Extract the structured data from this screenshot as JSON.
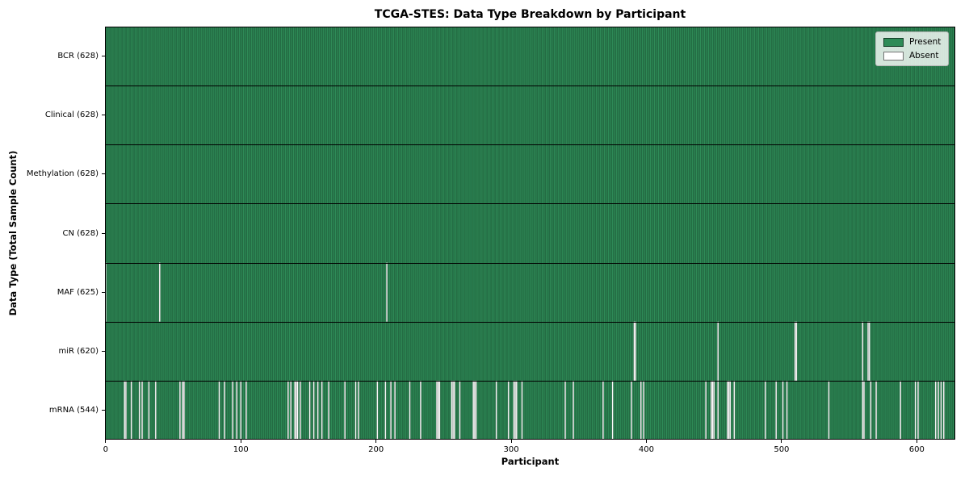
{
  "title": "TCGA-STES: Data Type Breakdown by Participant",
  "axes": {
    "xlabel": "Participant",
    "ylabel": "Data Type (Total Sample Count)"
  },
  "legend": {
    "items": [
      {
        "label": "Present",
        "color": "#2e8b57"
      },
      {
        "label": "Absent",
        "color": "#ffffff"
      }
    ]
  },
  "colors": {
    "present": "#2e8b57",
    "absent": "#ffffff",
    "bar_edge": "rgba(0,0,0,0.45)",
    "row_separator": "#000000",
    "axes_border": "#000000"
  },
  "chart_data": {
    "type": "heatmap",
    "title": "TCGA-STES: Data Type Breakdown by Participant",
    "xlabel": "Participant",
    "ylabel": "Data Type (Total Sample Count)",
    "n_participants": 628,
    "xlim": [
      -0.5,
      628.5
    ],
    "x_ticks": [
      0,
      100,
      200,
      300,
      400,
      500,
      600
    ],
    "grid": false,
    "legend_position": "upper right",
    "legend": [
      {
        "label": "Present",
        "color": "#2e8b57"
      },
      {
        "label": "Absent",
        "color": "#ffffff"
      }
    ],
    "rows": [
      {
        "data_type": "BCR",
        "label": "BCR (628)",
        "present_count": 628,
        "absent_count": 0,
        "absent_participants": []
      },
      {
        "data_type": "Clinical",
        "label": "Clinical (628)",
        "present_count": 628,
        "absent_count": 0,
        "absent_participants": []
      },
      {
        "data_type": "Methylation",
        "label": "Methylation (628)",
        "present_count": 628,
        "absent_count": 0,
        "absent_participants": []
      },
      {
        "data_type": "CN",
        "label": "CN (628)",
        "present_count": 628,
        "absent_count": 0,
        "absent_participants": []
      },
      {
        "data_type": "MAF",
        "label": "MAF (625)",
        "present_count": 625,
        "absent_count": 3,
        "absent_participants": [
          0,
          40,
          208
        ]
      },
      {
        "data_type": "miR",
        "label": "miR (620)",
        "present_count": 620,
        "absent_count": 8,
        "absent_participants": [
          391,
          392,
          453,
          510,
          511,
          560,
          564,
          565
        ]
      },
      {
        "data_type": "mRNA",
        "label": "mRNA (544)",
        "present_count": 544,
        "absent_count": 84,
        "absent_participants": [
          14,
          15,
          19,
          25,
          27,
          32,
          37,
          55,
          57,
          58,
          84,
          88,
          94,
          97,
          100,
          104,
          135,
          137,
          140,
          141,
          142,
          144,
          151,
          154,
          157,
          160,
          165,
          177,
          185,
          187,
          201,
          207,
          211,
          214,
          225,
          233,
          245,
          246,
          247,
          256,
          257,
          258,
          262,
          272,
          273,
          274,
          289,
          298,
          302,
          303,
          304,
          308,
          340,
          346,
          368,
          375,
          389,
          396,
          398,
          444,
          448,
          449,
          450,
          453,
          460,
          461,
          462,
          465,
          488,
          496,
          501,
          504,
          535,
          560,
          561,
          566,
          570,
          588,
          599,
          601,
          614,
          616,
          618,
          620
        ]
      }
    ]
  }
}
